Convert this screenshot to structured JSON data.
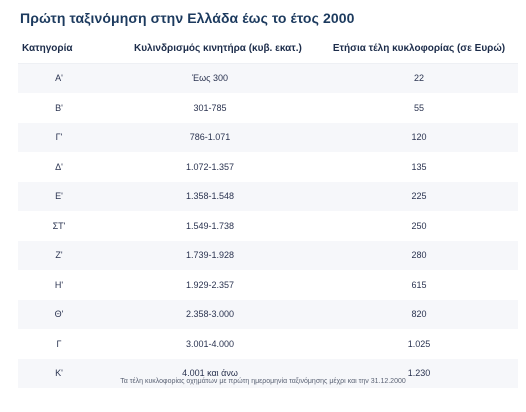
{
  "title": "Πρώτη ταξινόμηση στην Ελλάδα έως το έτος 2000",
  "table": {
    "headers": {
      "category": "Κατηγορία",
      "cc": "Κυλινδρισμός κινητήρα (κυβ. εκατ.)",
      "fee": "Ετήσια τέλη κυκλοφορίας (σε Ευρώ)"
    },
    "rows": [
      {
        "category": "Α'",
        "cc": "Έως 300",
        "fee": "22"
      },
      {
        "category": "Β'",
        "cc": "301-785",
        "fee": "55"
      },
      {
        "category": "Γ'",
        "cc": "786-1.071",
        "fee": "120"
      },
      {
        "category": "Δ'",
        "cc": "1.072-1.357",
        "fee": "135"
      },
      {
        "category": "Ε'",
        "cc": "1.358-1.548",
        "fee": "225"
      },
      {
        "category": "ΣΤ'",
        "cc": "1.549-1.738",
        "fee": "250"
      },
      {
        "category": "Ζ'",
        "cc": "1.739-1.928",
        "fee": "280"
      },
      {
        "category": "Η'",
        "cc": "1.929-2.357",
        "fee": "615"
      },
      {
        "category": "Θ'",
        "cc": "2.358-3.000",
        "fee": "820"
      },
      {
        "category": "Γ",
        "cc": "3.001-4.000",
        "fee": "1.025"
      },
      {
        "category": "Κ'",
        "cc": "4.001 και άνω",
        "fee": "1.230"
      }
    ]
  },
  "footnote": "Τα τέλη κυκλοφορίας οχημάτων με πρώτη ημερομηνία ταξινόμησης μέχρι και την 31.12.2000"
}
